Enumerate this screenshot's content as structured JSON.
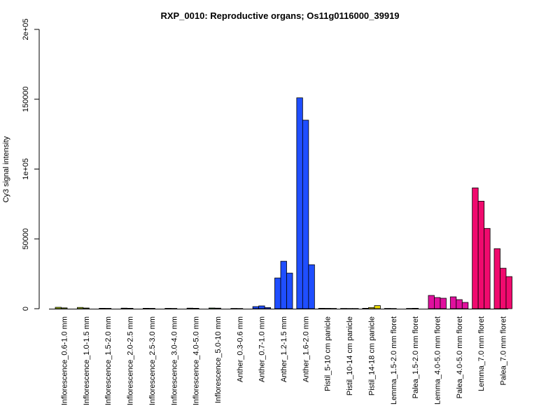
{
  "chart_data": {
    "type": "bar",
    "title": "RXP_0010: Reproductive organs; Os11g0116000_39919",
    "xlabel": "",
    "ylabel": "Cy3 signal intensity",
    "ylim": [
      0,
      200000
    ],
    "yticks": [
      0,
      50000,
      100000,
      150000,
      200000
    ],
    "ytick_labels": [
      "0",
      "50000",
      "1e+05",
      "150000",
      "2e+05"
    ],
    "grid": false,
    "legend": "none",
    "groups": [
      {
        "label": "Inflorescence_0.6-1.0 mm",
        "color": "#a8c400",
        "values": [
          1000,
          600
        ]
      },
      {
        "label": "Inflorescence_1.0-1.5 mm",
        "color": "#a8c400",
        "values": [
          900,
          500
        ]
      },
      {
        "label": "Inflorescence_1.5-2.0 mm",
        "color": "#8fc400",
        "values": [
          300,
          250
        ]
      },
      {
        "label": "Inflorescence_2.0-2.5 mm",
        "color": "#8fc400",
        "values": [
          400,
          300
        ]
      },
      {
        "label": "Inflorescence_2.5-3.0 mm",
        "color": "#78c400",
        "values": [
          300,
          250
        ]
      },
      {
        "label": "Inflorescence_3.0-4.0 mm",
        "color": "#66c400",
        "values": [
          250,
          200
        ]
      },
      {
        "label": "Inflorescence_4.0-5.0 mm",
        "color": "#4cc400",
        "values": [
          400,
          300
        ]
      },
      {
        "label": "Inflorescence_5.0-10 mm",
        "color": "#33c400",
        "values": [
          500,
          400
        ]
      },
      {
        "label": "Anther_0.3-0.6 mm",
        "color": "#1f4eff",
        "values": [
          200,
          150
        ]
      },
      {
        "label": "Anther_0.7-1.0 mm",
        "color": "#1f4eff",
        "values": [
          1500,
          2000,
          800
        ]
      },
      {
        "label": "Anther_1.2-1.5 mm",
        "color": "#1f4eff",
        "values": [
          22000,
          34000,
          25500
        ]
      },
      {
        "label": "Anther_1.6-2.0 mm",
        "color": "#1f4eff",
        "values": [
          151000,
          135000,
          31500
        ]
      },
      {
        "label": "Pistil_5-10 cm panicle",
        "color": "#e8d800",
        "values": [
          300,
          250,
          200
        ]
      },
      {
        "label": "Pistil_10-14 cm panicle",
        "color": "#e8d800",
        "values": [
          200,
          150,
          150
        ]
      },
      {
        "label": "Pistil_14-18 cm panicle",
        "color": "#e8d800",
        "values": [
          300,
          800,
          2200
        ]
      },
      {
        "label": "Lemma_1.5-2.0 mm floret",
        "color": "#e0109e",
        "values": [
          200,
          150
        ]
      },
      {
        "label": "Palea_1.5-2.0 mm floret",
        "color": "#e0109e",
        "values": [
          200,
          300
        ]
      },
      {
        "label": "Lemma_4.0-5.0 mm floret",
        "color": "#e0109e",
        "values": [
          9500,
          8000,
          7500
        ]
      },
      {
        "label": "Palea_4.0-5.0 mm floret",
        "color": "#e0109e",
        "values": [
          8500,
          6500,
          4500
        ]
      },
      {
        "label": "Lemma_7.0 mm floret",
        "color": "#f00a6e",
        "values": [
          86500,
          77000,
          57500
        ]
      },
      {
        "label": "Palea_7.0 mm floret",
        "color": "#f00a6e",
        "values": [
          43000,
          29000,
          23000
        ]
      }
    ]
  }
}
